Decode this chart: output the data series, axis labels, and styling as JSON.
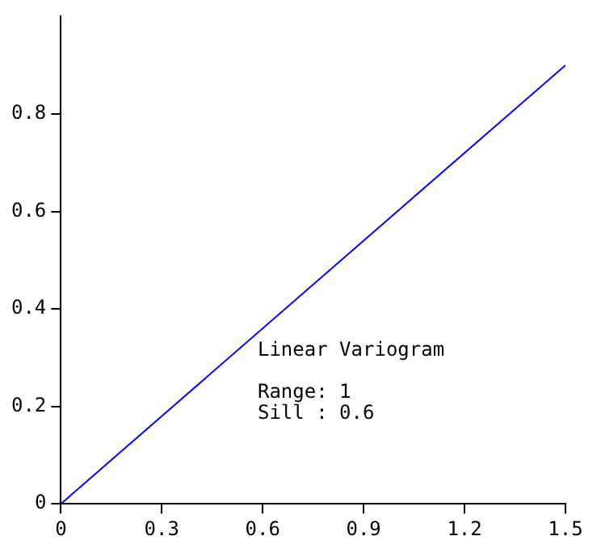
{
  "chart_data": {
    "type": "line",
    "x": [
      0,
      1.5
    ],
    "series": [
      {
        "color": "#0000ff",
        "values": [
          0,
          0.9
        ]
      }
    ],
    "xlim": [
      0,
      1.5
    ],
    "xticks": [
      0,
      0.3,
      0.6,
      0.9,
      1.2,
      1.5
    ],
    "ylim": [
      0,
      1
    ],
    "yticks": [
      0,
      0.2,
      0.4,
      0.6,
      0.8
    ],
    "grid": false,
    "legend": false,
    "marker": "none",
    "line_style": "solid",
    "annotations": [
      "Linear Variogram",
      "Range: 1",
      "Sill : 0.6"
    ]
  }
}
